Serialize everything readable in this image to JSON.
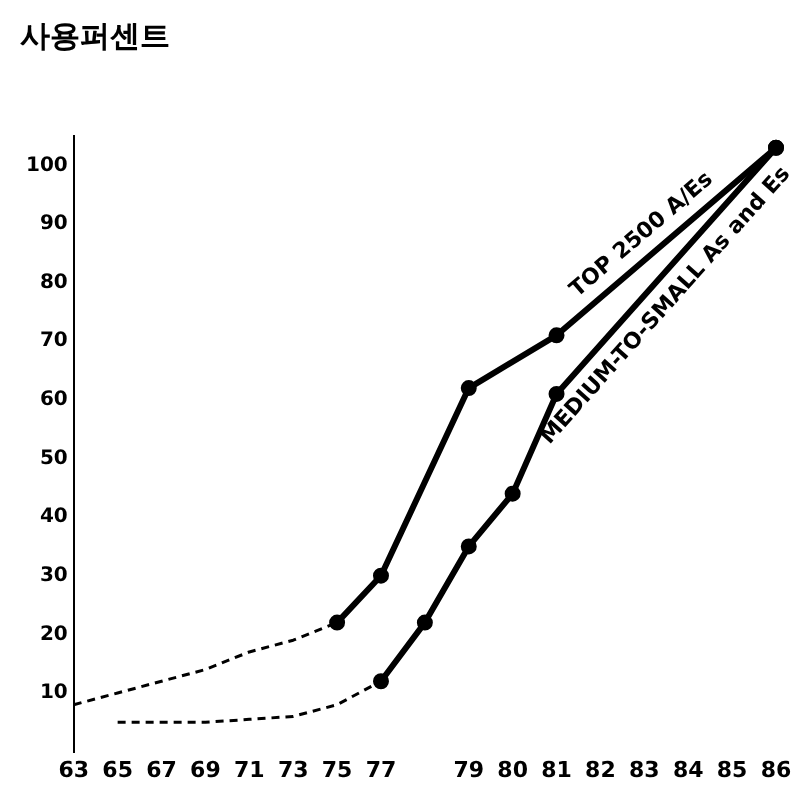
{
  "chart_data": {
    "type": "line",
    "title": "사용퍼센트",
    "categories": [
      "63",
      "65",
      "67",
      "69",
      "71",
      "73",
      "75",
      "77",
      null,
      "79",
      "80",
      "81",
      "82",
      "83",
      "84",
      "85",
      "86"
    ],
    "series": [
      {
        "color": "#000000",
        "line_style": "dashed",
        "marker": "none",
        "values": [
          8,
          10,
          12,
          14,
          17,
          19,
          22,
          null,
          null,
          null,
          null,
          null,
          null,
          null,
          null,
          null,
          null
        ]
      },
      {
        "name": "TOP 2500 A/Es",
        "color": "#000000",
        "line_style": "solid",
        "marker": "circle",
        "values": [
          null,
          null,
          null,
          null,
          null,
          null,
          22,
          30,
          null,
          62,
          null,
          71,
          null,
          null,
          null,
          null,
          103
        ]
      },
      {
        "color": "#000000",
        "line_style": "dashed",
        "marker": "none",
        "values": [
          null,
          5,
          5,
          5,
          5.5,
          6,
          8,
          12,
          null,
          null,
          null,
          null,
          null,
          null,
          null,
          null,
          null
        ]
      },
      {
        "name": "MEDIUM-TO-SMALL As and Es",
        "color": "#000000",
        "line_style": "solid",
        "marker": "circle",
        "values": [
          null,
          null,
          null,
          null,
          null,
          null,
          null,
          12,
          22,
          35,
          44,
          61,
          null,
          null,
          null,
          null,
          103
        ]
      }
    ],
    "ylim": [
      0,
      105
    ],
    "yticks": [
      10,
      20,
      30,
      40,
      50,
      60,
      70,
      80,
      90,
      100
    ],
    "grid": false,
    "legend": false
  }
}
